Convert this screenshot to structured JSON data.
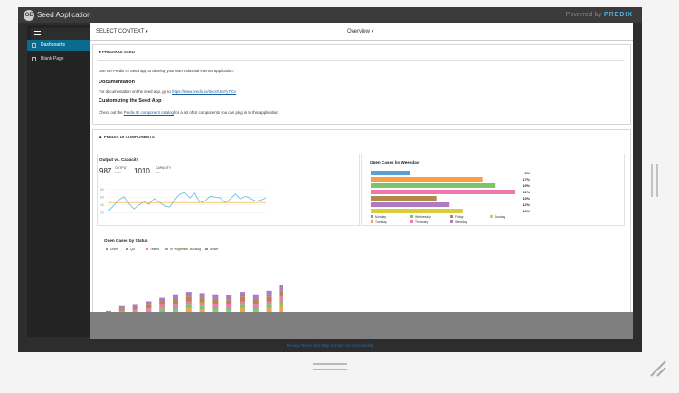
{
  "app": {
    "title": "Seed Application",
    "logo": "GE",
    "powered_by": "Powered by",
    "brand": "PREDIX"
  },
  "sidebar": {
    "items": [
      {
        "label": "Dashboards",
        "icon": "dashboard-icon",
        "active": true
      },
      {
        "label": "Blank Page",
        "icon": "page-icon",
        "active": false
      }
    ]
  },
  "context_bar": {
    "context_label": "SELECT CONTEXT",
    "view_label": "Overview"
  },
  "seed_card": {
    "heading": "PREDIX UI SEED",
    "intro": "Use the Predix UI Seed app to develop your own industrial internet application.",
    "doc_heading": "Documentation",
    "doc_text": "For documentation on the seed app, go to",
    "doc_link": "https://www.predix.io/docs#Jm7y7tCv",
    "customize_heading": "Customizing the Seed App",
    "customize_pre": "Check out the",
    "customize_link": "Predix UI component catalog",
    "customize_post": "for a list of UI components you can plug in to this application."
  },
  "components_card": {
    "heading": "PREDIX UI COMPONENTS"
  },
  "output_panel": {
    "title": "Output vs. Capacity",
    "output_value": "987",
    "output_label": "OUTPUT",
    "output_unit": "kw/u",
    "capacity_value": "1010",
    "capacity_label": "CAPACITY",
    "capacity_unit": "kw"
  },
  "footer": {
    "links": "Privacy  Terms  Site Map  Contact Us  Accessibility"
  },
  "colors": {
    "accent": "#0b6b8f",
    "brand": "#4bb1e3"
  },
  "chart_data": [
    {
      "type": "line",
      "title": "Output vs. Capacity",
      "ylim": [
        0,
        100
      ],
      "y_ticks": [
        "80",
        "60",
        "40",
        "20"
      ],
      "series": [
        {
          "values": [
            25,
            38,
            52,
            61,
            44,
            30,
            40,
            48,
            42,
            56,
            47,
            38,
            35,
            52,
            67,
            72,
            58,
            70,
            46,
            50,
            62,
            60,
            58,
            46,
            55,
            68,
            55,
            62,
            56,
            50,
            52,
            58
          ],
          "color": "#5bbbe8"
        },
        {
          "values": [
            46,
            46,
            46,
            46,
            46,
            46,
            46,
            46,
            46,
            46,
            46,
            46,
            46,
            46,
            46,
            46,
            46,
            46,
            46,
            46,
            46,
            46,
            46,
            46,
            46,
            46,
            46,
            46,
            46,
            46,
            46,
            46
          ],
          "color": "#f5a623"
        }
      ]
    },
    {
      "type": "bar",
      "title": "Open Cases by Weekday",
      "categories": [
        "Monday",
        "Tuesday",
        "Wednesday",
        "Thursday",
        "Friday",
        "Saturday",
        "Sunday"
      ],
      "values": [
        6,
        17,
        19,
        22,
        10,
        12,
        14
      ],
      "labels": [
        "6%",
        "17%",
        "19%",
        "22%",
        "10%",
        "12%",
        "14%"
      ],
      "colors": [
        "#5a9fd6",
        "#f5a045",
        "#7cc36a",
        "#ef78ac",
        "#b08a4b",
        "#b07ac2",
        "#dccb3a"
      ],
      "legend": [
        "Monday",
        "Wednesday",
        "Friday",
        "Sunday",
        "Tuesday",
        "Thursday",
        "Saturday"
      ],
      "legend_colors": [
        "#5a9fd6",
        "#7cc36a",
        "#b08a4b",
        "#dccb3a",
        "#f5a045",
        "#ef78ac",
        "#b07ac2"
      ]
    },
    {
      "type": "bar",
      "title": "Open Cases by Status",
      "stacked": true,
      "series": [
        {
          "name": "Active",
          "color": "#5a9fd6",
          "values": [
            1,
            2,
            2,
            2,
            3,
            3,
            4,
            3,
            3,
            3,
            4,
            3,
            4,
            5,
            5,
            6
          ]
        },
        {
          "name": "Backlog",
          "color": "#f5a045",
          "values": [
            1,
            2,
            2,
            3,
            3,
            4,
            5,
            5,
            4,
            4,
            5,
            4,
            5,
            6,
            7,
            9
          ]
        },
        {
          "name": "In Progress",
          "color": "#7cc36a",
          "values": [
            1,
            2,
            2,
            2,
            3,
            3,
            3,
            3,
            3,
            3,
            3,
            3,
            3,
            4,
            4,
            5
          ]
        },
        {
          "name": "Tested",
          "color": "#ef78ac",
          "values": [
            1,
            1,
            2,
            2,
            3,
            3,
            3,
            3,
            3,
            3,
            3,
            3,
            3,
            4,
            5,
            6
          ]
        },
        {
          "name": "QA",
          "color": "#b08a4b",
          "values": [
            2,
            2,
            2,
            3,
            3,
            4,
            4,
            4,
            4,
            3,
            4,
            4,
            4,
            5,
            5,
            6
          ]
        },
        {
          "name": "Done",
          "color": "#b07ac2",
          "values": [
            1,
            2,
            2,
            3,
            3,
            4,
            4,
            4,
            4,
            4,
            4,
            4,
            5,
            5,
            6,
            8
          ]
        }
      ],
      "legend": [
        "Done",
        "QA",
        "Tested",
        "In Progress",
        "Backlog",
        "Active"
      ]
    }
  ]
}
